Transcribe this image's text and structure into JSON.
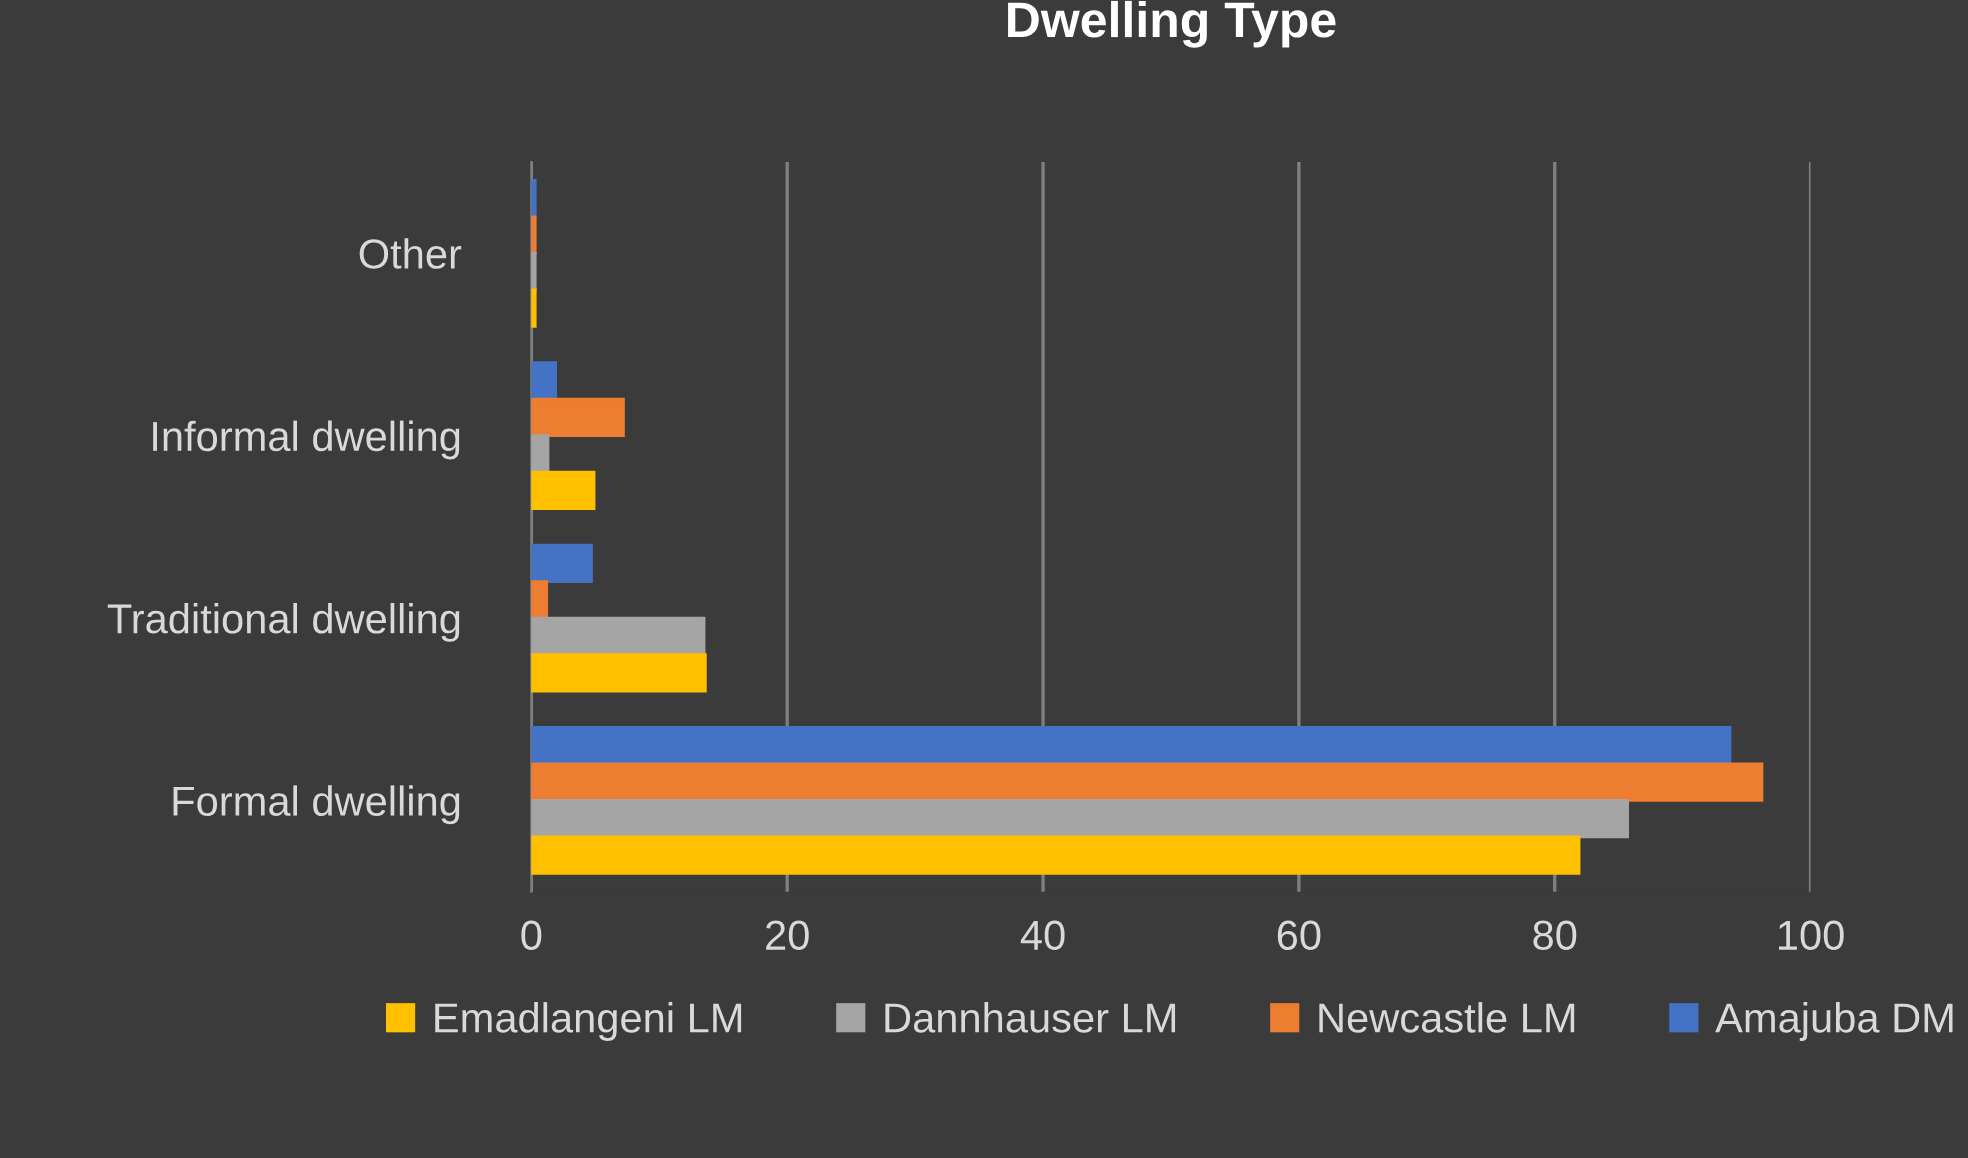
{
  "chart_data": {
    "type": "bar",
    "orientation": "horizontal",
    "title": "Dwelling Type",
    "categories": [
      "Other",
      "Informal dwelling",
      "Traditional dwelling",
      "Formal dwelling"
    ],
    "series": [
      {
        "name": "Amajuba DM",
        "color": "#4472c4",
        "values": [
          0.3,
          1.9,
          4.7,
          93.7
        ]
      },
      {
        "name": "Newcastle LM",
        "color": "#ed7d31",
        "values": [
          0.3,
          7.2,
          1.2,
          96.2
        ]
      },
      {
        "name": "Dannhauser LM",
        "color": "#a5a5a5",
        "values": [
          0.3,
          1.3,
          13.5,
          85.7
        ]
      },
      {
        "name": "Emadlangeni LM",
        "color": "#ffc000",
        "values": [
          0.3,
          4.9,
          13.6,
          81.9
        ]
      }
    ],
    "xlim": [
      0,
      100
    ],
    "xticks": [
      0,
      20,
      40,
      60,
      80,
      100
    ],
    "grid": "x",
    "legend": "bottom"
  }
}
